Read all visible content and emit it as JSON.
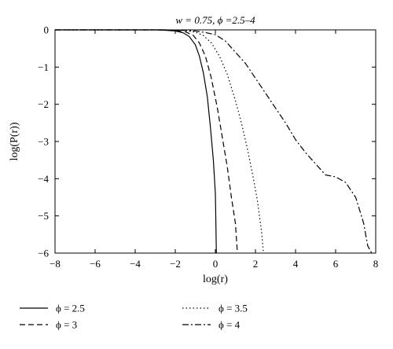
{
  "chart_data": {
    "type": "line",
    "title": "w = 0.75, ϕ =2.5–4",
    "xlabel": "log(r)",
    "ylabel": "log(P(r))",
    "xlim": [
      -8,
      8
    ],
    "ylim": [
      -6,
      0
    ],
    "xticks": [
      -8,
      -6,
      -4,
      -2,
      0,
      2,
      4,
      6,
      8
    ],
    "yticks": [
      0,
      -1,
      -2,
      -3,
      -4,
      -5,
      -6
    ],
    "xtick_labels": [
      "−8",
      "−6",
      "−4",
      "−2",
      "0",
      "2",
      "4",
      "6",
      "8"
    ],
    "ytick_labels": [
      "0",
      "−1",
      "−2",
      "−3",
      "−4",
      "−5",
      "−6"
    ],
    "grid": false,
    "legend_position": "bottom",
    "series": [
      {
        "name": "ϕ = 2.5",
        "style": "solid",
        "x": [
          -8,
          -3,
          -2.5,
          -2,
          -1.6,
          -1.3,
          -1.0,
          -0.8,
          -0.6,
          -0.4,
          -0.25,
          -0.1,
          0.0,
          0.02,
          0.05
        ],
        "y": [
          0,
          0,
          -0.01,
          -0.03,
          -0.08,
          -0.18,
          -0.4,
          -0.7,
          -1.15,
          -1.8,
          -2.6,
          -3.5,
          -4.4,
          -5.0,
          -6.0
        ]
      },
      {
        "name": "ϕ = 3",
        "style": "dashed",
        "x": [
          -8,
          -2.5,
          -2,
          -1.5,
          -1.1,
          -0.8,
          -0.5,
          -0.2,
          0.1,
          0.35,
          0.6,
          0.8,
          1.0,
          1.1
        ],
        "y": [
          0,
          0,
          -0.02,
          -0.05,
          -0.15,
          -0.35,
          -0.7,
          -1.3,
          -2.1,
          -2.9,
          -3.7,
          -4.5,
          -5.2,
          -6.0
        ]
      },
      {
        "name": "ϕ = 3.5",
        "style": "dotted",
        "x": [
          -8,
          -2.5,
          -1.5,
          -1.0,
          -0.6,
          -0.2,
          0.2,
          0.6,
          1.0,
          1.3,
          1.6,
          1.9,
          2.1,
          2.3,
          2.4
        ],
        "y": [
          0,
          0,
          -0.02,
          -0.06,
          -0.15,
          -0.35,
          -0.7,
          -1.2,
          -1.9,
          -2.5,
          -3.2,
          -4.0,
          -4.6,
          -5.4,
          -6.0
        ]
      },
      {
        "name": "ϕ = 4",
        "style": "dashdot",
        "x": [
          -8,
          -2.5,
          -1.5,
          -1.0,
          -0.5,
          0.0,
          0.5,
          1.0,
          1.5,
          2.0,
          2.5,
          3.0,
          3.5,
          4.0,
          4.5,
          5.0,
          5.5,
          6.0,
          6.5,
          7.0,
          7.4,
          7.6,
          7.8
        ],
        "y": [
          0,
          0,
          -0.01,
          -0.03,
          -0.07,
          -0.13,
          -0.3,
          -0.6,
          -0.9,
          -1.3,
          -1.7,
          -2.1,
          -2.5,
          -2.95,
          -3.3,
          -3.6,
          -3.9,
          -3.95,
          -4.1,
          -4.5,
          -5.2,
          -5.8,
          -6.0
        ]
      }
    ]
  }
}
